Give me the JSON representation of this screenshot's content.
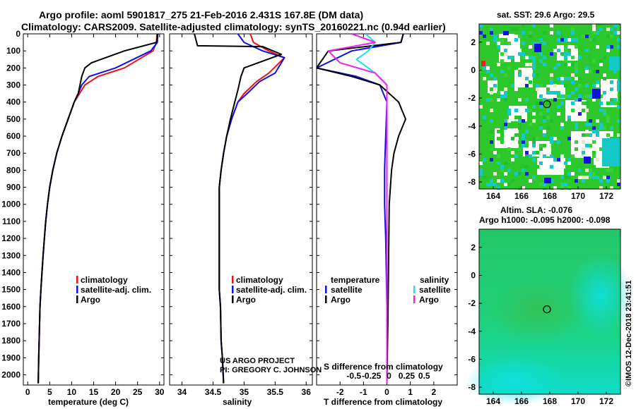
{
  "title_line1": "Argo profile: aoml 5901817_275 21-Feb-2016 2.431S 167.8E (DM data)",
  "title_line2": "Climatology: CARS2009. Satellite-adjusted climatology: synTS_20160221.nc (0.94d earlier)",
  "credit_line1": "US ARGO PROJECT",
  "credit_line2": "PI: GREGORY C. JOHNSON",
  "stamp": "©IMOS 12-Dec-2018 23:41:51",
  "colors": {
    "climatology": "#ee1111",
    "satellite": "#1010ee",
    "argo": "#000000",
    "sal_satellite": "#22e0f0",
    "sal_argo": "#ee22ee"
  },
  "chart_data": [
    {
      "type": "line",
      "xlabel": "temperature (deg C)",
      "xlim": [
        -1,
        31
      ],
      "ylim": [
        2060,
        0
      ],
      "xticks": [
        "0",
        "5",
        "10",
        "15",
        "20",
        "25",
        "30"
      ],
      "xtick_values": [
        0,
        5,
        10,
        15,
        20,
        25,
        30
      ],
      "yticks": [
        "0",
        "100",
        "200",
        "300",
        "400",
        "500",
        "600",
        "700",
        "800",
        "900",
        "1000",
        "1100",
        "1200",
        "1300",
        "1400",
        "1500",
        "1600",
        "1700",
        "1800",
        "1900",
        "2000"
      ],
      "legend": [
        "climatology",
        "satellite-adj. clim.",
        "Argo"
      ],
      "series": [
        {
          "name": "climatology",
          "color": "#ee1111",
          "x": [
            29.4,
            29.3,
            28.5,
            22,
            16,
            13,
            11.8,
            10.6,
            9.2,
            7.8,
            6.6,
            5.7,
            5.0,
            4.5,
            4.1,
            3.8,
            3.5,
            3.25,
            3.0,
            2.8,
            2.6,
            2.5,
            2.4
          ],
          "y": [
            0,
            50,
            100,
            200,
            250,
            300,
            350,
            400,
            500,
            600,
            700,
            800,
            900,
            1000,
            1100,
            1200,
            1300,
            1400,
            1500,
            1600,
            1800,
            1900,
            2050
          ]
        },
        {
          "name": "satellite-adj. clim.",
          "color": "#1010ee",
          "x": [
            29.6,
            29.5,
            28,
            20,
            14,
            12.3,
            11.5,
            10.6,
            9.2,
            7.8,
            6.6,
            5.7,
            5.0,
            4.5,
            4.1,
            3.8,
            3.5,
            3.25,
            3.0,
            2.8,
            2.6,
            2.5,
            2.4
          ],
          "y": [
            0,
            50,
            100,
            200,
            250,
            300,
            350,
            400,
            500,
            600,
            700,
            800,
            900,
            1000,
            1100,
            1200,
            1300,
            1400,
            1500,
            1600,
            1800,
            1900,
            2050
          ]
        },
        {
          "name": "Argo",
          "color": "#000000",
          "x": [
            29.6,
            29.3,
            22,
            14.5,
            13,
            12.3,
            11.5,
            10.6,
            9.2,
            7.8,
            6.6,
            5.7,
            5.0,
            4.5,
            4.1,
            3.8,
            3.5,
            3.25,
            3.0,
            2.8,
            2.6,
            2.5,
            2.4
          ],
          "y": [
            0,
            50,
            100,
            170,
            200,
            250,
            350,
            400,
            500,
            600,
            700,
            800,
            900,
            1000,
            1100,
            1200,
            1300,
            1400,
            1500,
            1600,
            1800,
            1900,
            2050
          ]
        }
      ]
    },
    {
      "type": "line",
      "xlabel": "salinity",
      "xlim": [
        33.8,
        36.1
      ],
      "ylim": [
        2060,
        0
      ],
      "xticks": [
        "34",
        "34.5",
        "35",
        "35.5",
        "36"
      ],
      "xtick_values": [
        34,
        34.5,
        35,
        35.5,
        36
      ],
      "legend": [
        "climatology",
        "satellite-adj. clim.",
        "Argo"
      ],
      "series": [
        {
          "name": "climatology",
          "color": "#ee1111",
          "x": [
            35.1,
            35.15,
            35.4,
            35.65,
            35.4,
            35.2,
            35.0,
            34.9,
            34.8,
            34.72,
            34.67,
            34.63,
            34.6,
            34.6,
            34.6,
            34.6,
            34.6,
            34.62,
            34.63,
            34.65,
            34.67
          ],
          "y": [
            0,
            50,
            100,
            140,
            230,
            280,
            350,
            400,
            500,
            600,
            700,
            800,
            900,
            1000,
            1200,
            1400,
            1500,
            1600,
            1800,
            1900,
            2050
          ]
        },
        {
          "name": "satellite-adj. clim.",
          "color": "#1010ee",
          "x": [
            34.9,
            35.0,
            35.3,
            35.65,
            35.5,
            35.25,
            35.05,
            34.9,
            34.8,
            34.72,
            34.67,
            34.63,
            34.6,
            34.6,
            34.6,
            34.6,
            34.6,
            34.62,
            34.63,
            34.65,
            34.67
          ],
          "y": [
            0,
            50,
            100,
            140,
            230,
            280,
            350,
            400,
            500,
            600,
            700,
            800,
            900,
            1000,
            1200,
            1400,
            1500,
            1600,
            1800,
            1900,
            2050
          ]
        },
        {
          "name": "Argo",
          "color": "#000000",
          "x": [
            34.2,
            34.25,
            35.3,
            35.6,
            35.0,
            34.95,
            34.9,
            34.85,
            34.78,
            34.72,
            34.67,
            34.63,
            34.6,
            34.6,
            34.6,
            34.6,
            34.6,
            34.62,
            34.63,
            34.65,
            34.67
          ],
          "y": [
            0,
            70,
            75,
            120,
            200,
            250,
            330,
            400,
            500,
            600,
            700,
            800,
            900,
            1000,
            1200,
            1400,
            1500,
            1600,
            1800,
            1900,
            2050
          ]
        }
      ]
    },
    {
      "type": "line",
      "xlabel": "T difference from climatology",
      "top_label": "S difference from climatology",
      "xlim": [
        -3,
        3
      ],
      "ylim": [
        2060,
        0
      ],
      "xticks": [
        "-2",
        "-1",
        "0",
        "1",
        "2"
      ],
      "xtick_values": [
        -2,
        -1,
        0,
        1,
        2
      ],
      "sticks": [
        "-0.5",
        "-0.25",
        "0",
        "0.25",
        "0.5"
      ],
      "stick_values": [
        -1.5,
        -0.75,
        0,
        0.75,
        1.5
      ],
      "legend_left_title": "temperature",
      "legend_right_title": "salinity",
      "legend_left": [
        "satellite",
        "Argo"
      ],
      "legend_right": [
        "satellite",
        "Argo"
      ],
      "series": [
        {
          "name": "T satellite",
          "color": "#1010ee",
          "x": [
            0.7,
            0.6,
            -1.5,
            -3.0,
            -1.3,
            -0.3,
            0,
            -0.05,
            -0.1,
            -0.1,
            -0.05,
            0,
            0,
            0
          ],
          "y": [
            0,
            50,
            100,
            200,
            250,
            300,
            400,
            600,
            800,
            1000,
            1200,
            1600,
            1800,
            2050
          ]
        },
        {
          "name": "T Argo",
          "color": "#000000",
          "x": [
            0.7,
            0.6,
            -2.5,
            -3.0,
            -1.5,
            -0.3,
            0.5,
            0.8,
            0.5,
            0.3,
            0.2,
            0.1,
            0.05,
            0
          ],
          "y": [
            0,
            50,
            100,
            200,
            250,
            300,
            400,
            500,
            600,
            700,
            800,
            1000,
            1600,
            2050
          ]
        },
        {
          "name": "S satellite",
          "color": "#22e0f0",
          "x": [
            -0.9,
            -0.5,
            -0.8,
            -1.3,
            -0.5,
            0,
            0,
            0,
            0
          ],
          "y": [
            0,
            50,
            100,
            150,
            230,
            300,
            600,
            1000,
            2050
          ]
        },
        {
          "name": "S Argo",
          "color": "#ee22ee",
          "x": [
            -1.5,
            -0.5,
            -2.5,
            -2.0,
            -0.5,
            0,
            0,
            0
          ],
          "y": [
            0,
            50,
            100,
            170,
            230,
            300,
            1000,
            2050
          ]
        }
      ]
    },
    {
      "type": "heatmap",
      "title": "sat. SST: 29.6 Argo: 29.5",
      "xlim": [
        163,
        173
      ],
      "ylim": [
        -8.5,
        3.3
      ],
      "xticks": [
        "164",
        "166",
        "168",
        "170",
        "172"
      ],
      "xtick_values": [
        164,
        166,
        168,
        170,
        172
      ],
      "yticks": [
        "2",
        "0",
        "-2",
        "-4",
        "-6",
        "-8"
      ],
      "ytick_values": [
        2,
        0,
        -2,
        -4,
        -6,
        -8
      ],
      "marker": {
        "lon": 167.8,
        "lat": -2.43
      }
    },
    {
      "type": "heatmap",
      "title_line1": "Altim. SLA: -0.076",
      "title_line2": "Argo h1000: -0.095 h2000: -0.098",
      "xlim": [
        163,
        173
      ],
      "ylim": [
        -8.5,
        3.3
      ],
      "xticks": [
        "164",
        "166",
        "168",
        "170",
        "172"
      ],
      "xtick_values": [
        164,
        166,
        168,
        170,
        172
      ],
      "yticks": [
        "2",
        "0",
        "-2",
        "-4",
        "-6",
        "-8"
      ],
      "ytick_values": [
        2,
        0,
        -2,
        -4,
        -6,
        -8
      ],
      "marker": {
        "lon": 167.8,
        "lat": -2.43
      }
    }
  ]
}
